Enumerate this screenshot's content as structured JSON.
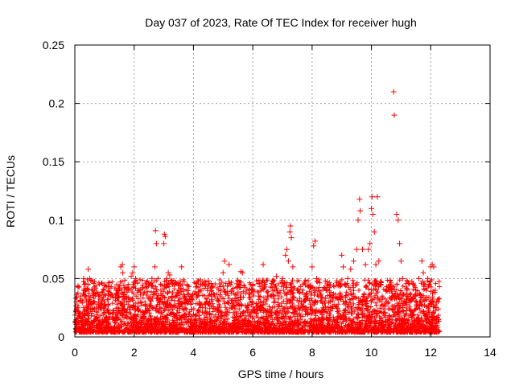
{
  "chart_data": {
    "type": "scatter",
    "title": "Day 037 of 2023, Rate Of TEC Index for receiver hugh",
    "xlabel": "GPS time / hours",
    "ylabel": "ROTI / TECUs",
    "xlim": [
      0,
      14
    ],
    "ylim": [
      0,
      0.25
    ],
    "xticks": [
      0,
      2,
      4,
      6,
      8,
      10,
      12,
      14
    ],
    "yticks": [
      0,
      0.05,
      0.1,
      0.15,
      0.2,
      0.25
    ],
    "ytick_labels": [
      "0",
      "0.05",
      "0.1",
      "0.15",
      "0.2",
      "0.25"
    ],
    "grid": true,
    "marker": "+",
    "color": "#ff0000",
    "x_range_of_data": [
      0,
      12.3
    ],
    "series": [
      {
        "name": "",
        "points": [
          [
            0.05,
            0.03
          ],
          [
            0.1,
            0.025
          ],
          [
            0.15,
            0.02
          ],
          [
            0.2,
            0.035
          ],
          [
            0.3,
            0.05
          ],
          [
            0.35,
            0.045
          ],
          [
            0.4,
            0.03
          ],
          [
            0.45,
            0.058
          ],
          [
            0.5,
            0.05
          ],
          [
            0.6,
            0.04
          ],
          [
            0.7,
            0.035
          ],
          [
            0.8,
            0.03
          ],
          [
            1.0,
            0.028
          ],
          [
            1.2,
            0.035
          ],
          [
            1.4,
            0.04
          ],
          [
            1.55,
            0.06
          ],
          [
            1.6,
            0.062
          ],
          [
            1.62,
            0.055
          ],
          [
            1.8,
            0.04
          ],
          [
            1.9,
            0.052
          ],
          [
            1.95,
            0.055
          ],
          [
            2.0,
            0.06
          ],
          [
            2.05,
            0.05
          ],
          [
            2.2,
            0.04
          ],
          [
            2.4,
            0.042
          ],
          [
            2.6,
            0.05
          ],
          [
            2.7,
            0.06
          ],
          [
            2.72,
            0.091
          ],
          [
            2.75,
            0.08
          ],
          [
            2.8,
            0.05
          ],
          [
            2.9,
            0.04
          ],
          [
            3.0,
            0.08
          ],
          [
            3.02,
            0.088
          ],
          [
            3.05,
            0.086
          ],
          [
            3.1,
            0.05
          ],
          [
            3.15,
            0.055
          ],
          [
            3.2,
            0.053
          ],
          [
            3.3,
            0.045
          ],
          [
            3.5,
            0.04
          ],
          [
            3.6,
            0.06
          ],
          [
            3.7,
            0.035
          ],
          [
            3.9,
            0.03
          ],
          [
            4.2,
            0.03
          ],
          [
            4.5,
            0.048
          ],
          [
            4.6,
            0.035
          ],
          [
            4.8,
            0.042
          ],
          [
            5.0,
            0.055
          ],
          [
            5.05,
            0.065
          ],
          [
            5.2,
            0.062
          ],
          [
            5.3,
            0.04
          ],
          [
            5.5,
            0.048
          ],
          [
            5.6,
            0.056
          ],
          [
            5.65,
            0.055
          ],
          [
            5.8,
            0.04
          ],
          [
            6.0,
            0.045
          ],
          [
            6.2,
            0.035
          ],
          [
            6.35,
            0.062
          ],
          [
            6.4,
            0.045
          ],
          [
            6.5,
            0.035
          ],
          [
            6.7,
            0.045
          ],
          [
            6.8,
            0.052
          ],
          [
            7.0,
            0.05
          ],
          [
            7.1,
            0.07
          ],
          [
            7.15,
            0.075
          ],
          [
            7.2,
            0.065
          ],
          [
            7.25,
            0.09
          ],
          [
            7.27,
            0.095
          ],
          [
            7.3,
            0.085
          ],
          [
            7.35,
            0.06
          ],
          [
            7.5,
            0.04
          ],
          [
            7.8,
            0.035
          ],
          [
            8.0,
            0.06
          ],
          [
            8.05,
            0.078
          ],
          [
            8.1,
            0.082
          ],
          [
            8.15,
            0.05
          ],
          [
            8.5,
            0.04
          ],
          [
            8.7,
            0.035
          ],
          [
            9.0,
            0.07
          ],
          [
            9.05,
            0.06
          ],
          [
            9.1,
            0.045
          ],
          [
            9.2,
            0.05
          ],
          [
            9.3,
            0.058
          ],
          [
            9.4,
            0.065
          ],
          [
            9.5,
            0.075
          ],
          [
            9.55,
            0.1
          ],
          [
            9.6,
            0.118
          ],
          [
            9.62,
            0.108
          ],
          [
            9.7,
            0.075
          ],
          [
            9.8,
            0.062
          ],
          [
            9.9,
            0.075
          ],
          [
            9.95,
            0.08
          ],
          [
            10.0,
            0.11
          ],
          [
            10.02,
            0.12
          ],
          [
            10.05,
            0.105
          ],
          [
            10.1,
            0.09
          ],
          [
            10.15,
            0.062
          ],
          [
            10.2,
            0.12
          ],
          [
            10.25,
            0.065
          ],
          [
            10.3,
            0.045
          ],
          [
            10.5,
            0.04
          ],
          [
            10.6,
            0.04
          ],
          [
            10.75,
            0.21
          ],
          [
            10.77,
            0.19
          ],
          [
            10.85,
            0.105
          ],
          [
            10.9,
            0.1
          ],
          [
            10.95,
            0.08
          ],
          [
            11.0,
            0.065
          ],
          [
            11.05,
            0.05
          ],
          [
            11.2,
            0.04
          ],
          [
            11.4,
            0.045
          ],
          [
            11.5,
            0.04
          ],
          [
            11.6,
            0.05
          ],
          [
            11.7,
            0.065
          ],
          [
            11.75,
            0.055
          ],
          [
            11.8,
            0.045
          ],
          [
            11.9,
            0.05
          ],
          [
            12.0,
            0.06
          ],
          [
            12.05,
            0.062
          ],
          [
            12.1,
            0.06
          ],
          [
            12.15,
            0.04
          ],
          [
            12.2,
            0.03
          ],
          [
            12.25,
            0.015
          ]
        ]
      }
    ]
  }
}
